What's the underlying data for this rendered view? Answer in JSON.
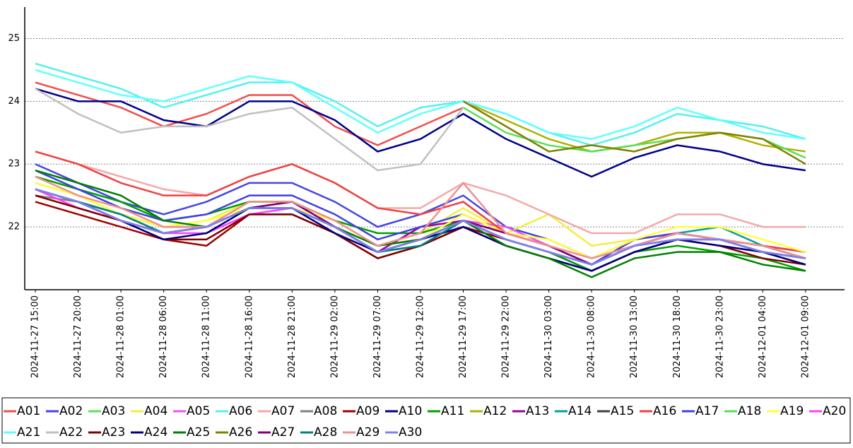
{
  "chart_data": {
    "type": "line",
    "categories": [
      "2024-11-27  15:00",
      "2024-11-27  20:00",
      "2024-11-28  01:00",
      "2024-11-28  06:00",
      "2024-11-28  11:00",
      "2024-11-28  16:00",
      "2024-11-28  21:00",
      "2024-11-29  02:00",
      "2024-11-29  07:00",
      "2024-11-29  12:00",
      "2024-11-29  17:00",
      "2024-11-29  22:00",
      "2024-11-30  03:00",
      "2024-11-30  08:00",
      "2024-11-30  13:00",
      "2024-11-30  18:00",
      "2024-11-30  23:00",
      "2024-12-01  04:00",
      "2024-12-01  09:00"
    ],
    "ylim": [
      21,
      25.5
    ],
    "yticks": [
      22,
      23,
      24,
      25
    ],
    "grid": true,
    "series": [
      {
        "name": "A01",
        "color": "#f04e4e",
        "values": [
          24.3,
          24.1,
          23.9,
          23.6,
          23.8,
          24.1,
          24.1,
          23.6,
          23.3,
          23.6,
          23.9,
          null,
          null,
          null,
          null,
          null,
          null,
          null,
          null
        ]
      },
      {
        "name": "A02",
        "color": "#4545e5",
        "values": [
          23.0,
          22.7,
          22.4,
          22.2,
          22.4,
          22.7,
          22.7,
          22.4,
          22.0,
          22.2,
          22.5,
          22.0,
          21.8,
          21.5,
          21.7,
          21.8,
          21.8,
          21.7,
          21.6
        ]
      },
      {
        "name": "A03",
        "color": "#5ee05e",
        "values": [
          22.7,
          22.5,
          22.2,
          22.0,
          22.0,
          22.4,
          22.4,
          22.1,
          21.7,
          21.8,
          22.1,
          21.8,
          21.6,
          21.4,
          21.7,
          21.9,
          21.8,
          21.7,
          21.5
        ]
      },
      {
        "name": "A04",
        "color": "#f0f040",
        "values": [
          22.8,
          22.5,
          22.3,
          22.0,
          22.1,
          22.4,
          22.4,
          22.1,
          21.7,
          21.9,
          22.3,
          21.9,
          22.2,
          21.7,
          21.8,
          21.9,
          21.8,
          21.7,
          21.5
        ]
      },
      {
        "name": "A05",
        "color": "#ee55ee",
        "values": [
          22.6,
          22.4,
          22.1,
          21.9,
          22.0,
          22.3,
          22.4,
          22.0,
          21.6,
          21.8,
          22.1,
          22.0,
          21.7,
          21.4,
          21.7,
          21.9,
          21.8,
          21.6,
          21.5
        ]
      },
      {
        "name": "A06",
        "color": "#55f0f0",
        "values": [
          24.6,
          24.4,
          24.2,
          23.9,
          24.1,
          24.3,
          24.3,
          24.0,
          23.6,
          23.9,
          24.0,
          23.8,
          23.5,
          23.3,
          23.5,
          23.8,
          23.7,
          23.6,
          23.4
        ]
      },
      {
        "name": "A07",
        "color": "#f5a8a8",
        "values": [
          23.2,
          23.0,
          22.8,
          22.6,
          22.5,
          22.8,
          23.0,
          22.7,
          22.3,
          22.3,
          22.7,
          22.5,
          22.2,
          21.9,
          21.9,
          22.2,
          22.2,
          22.0,
          22.0
        ]
      },
      {
        "name": "A08",
        "color": "#808080",
        "values": [
          22.5,
          22.4,
          22.1,
          21.9,
          22.0,
          22.3,
          22.3,
          22.0,
          21.6,
          21.8,
          22.0,
          21.8,
          21.6,
          21.4,
          21.7,
          21.8,
          21.8,
          21.6,
          21.5
        ]
      },
      {
        "name": "A09",
        "color": "#a00000",
        "values": [
          22.4,
          22.2,
          22.0,
          21.8,
          21.7,
          22.2,
          22.2,
          21.9,
          21.5,
          21.7,
          22.0,
          21.8,
          21.6,
          21.3,
          21.6,
          21.8,
          21.7,
          21.6,
          21.4
        ]
      },
      {
        "name": "A10",
        "color": "#00008b",
        "values": [
          24.2,
          24.0,
          24.0,
          23.7,
          23.6,
          24.0,
          24.0,
          23.7,
          23.2,
          23.4,
          23.8,
          23.4,
          23.1,
          22.8,
          23.1,
          23.3,
          23.2,
          23.0,
          22.9
        ]
      },
      {
        "name": "A11",
        "color": "#00a000",
        "values": [
          22.8,
          22.6,
          22.4,
          22.1,
          22.2,
          22.4,
          22.4,
          22.1,
          21.9,
          21.9,
          22.1,
          21.8,
          21.6,
          21.3,
          21.6,
          21.7,
          21.6,
          21.5,
          21.3
        ]
      },
      {
        "name": "A12",
        "color": "#b0b000",
        "values": [
          null,
          null,
          null,
          null,
          null,
          null,
          null,
          null,
          null,
          null,
          24.0,
          23.7,
          23.4,
          23.2,
          23.3,
          23.5,
          23.5,
          23.3,
          23.2
        ]
      },
      {
        "name": "A13",
        "color": "#a000a0",
        "values": [
          22.6,
          22.4,
          22.1,
          21.9,
          22.0,
          22.3,
          22.4,
          22.0,
          21.6,
          22.0,
          22.1,
          21.9,
          21.7,
          21.4,
          21.8,
          21.9,
          21.8,
          21.7,
          21.5
        ]
      },
      {
        "name": "A14",
        "color": "#00a0a0",
        "values": [
          22.6,
          22.4,
          22.2,
          21.9,
          22.0,
          22.3,
          22.3,
          22.0,
          21.6,
          21.7,
          22.1,
          21.8,
          21.6,
          21.4,
          21.7,
          21.9,
          22.0,
          21.7,
          21.5
        ]
      },
      {
        "name": "A15",
        "color": "#404040",
        "values": [
          22.6,
          22.4,
          22.2,
          22.0,
          22.0,
          22.3,
          22.4,
          22.0,
          21.6,
          21.8,
          22.1,
          21.8,
          21.6,
          21.4,
          21.7,
          21.8,
          21.8,
          21.6,
          21.5
        ]
      },
      {
        "name": "A16",
        "color": "#f04040",
        "values": [
          23.2,
          23.0,
          22.7,
          22.5,
          22.5,
          22.8,
          23.0,
          22.7,
          22.3,
          22.2,
          22.4,
          21.9,
          21.7,
          21.4,
          21.8,
          21.9,
          21.8,
          21.7,
          21.6
        ]
      },
      {
        "name": "A17",
        "color": "#4040e0",
        "values": [
          22.9,
          22.6,
          22.3,
          22.1,
          22.2,
          22.5,
          22.5,
          22.2,
          21.8,
          22.0,
          22.2,
          21.9,
          21.7,
          21.4,
          21.8,
          21.9,
          21.8,
          21.6,
          21.5
        ]
      },
      {
        "name": "A18",
        "color": "#55e055",
        "values": [
          null,
          null,
          null,
          null,
          null,
          null,
          null,
          null,
          null,
          null,
          23.9,
          23.5,
          23.3,
          23.2,
          23.3,
          23.4,
          23.5,
          23.4,
          23.1
        ]
      },
      {
        "name": "A19",
        "color": "#ffff40",
        "values": [
          22.7,
          22.5,
          22.2,
          22.0,
          22.1,
          22.3,
          22.3,
          22.1,
          21.7,
          21.8,
          22.2,
          21.9,
          21.8,
          21.5,
          21.8,
          22.0,
          22.0,
          21.8,
          21.6
        ]
      },
      {
        "name": "A20",
        "color": "#ff40ff",
        "values": [
          22.6,
          22.3,
          22.1,
          21.9,
          21.9,
          22.2,
          22.3,
          22.0,
          21.6,
          21.8,
          22.1,
          21.8,
          21.6,
          21.4,
          21.7,
          21.9,
          21.8,
          21.6,
          21.5
        ]
      },
      {
        "name": "A21",
        "color": "#60ffff",
        "values": [
          24.5,
          24.3,
          24.1,
          24.0,
          24.2,
          24.4,
          24.3,
          23.9,
          23.5,
          23.8,
          24.0,
          23.8,
          23.5,
          23.4,
          23.6,
          23.9,
          23.7,
          23.5,
          23.4
        ]
      },
      {
        "name": "A22",
        "color": "#c0c0c0",
        "values": [
          24.2,
          23.8,
          23.5,
          23.6,
          23.6,
          23.8,
          23.9,
          23.4,
          22.9,
          23.0,
          23.9,
          null,
          null,
          null,
          null,
          null,
          null,
          null,
          null
        ]
      },
      {
        "name": "A23",
        "color": "#800000",
        "values": [
          22.5,
          22.3,
          22.1,
          21.8,
          21.8,
          22.2,
          22.2,
          21.9,
          21.5,
          21.7,
          22.0,
          21.7,
          21.5,
          21.3,
          21.6,
          21.8,
          21.7,
          21.5,
          21.4
        ]
      },
      {
        "name": "A24",
        "color": "#000080",
        "values": [
          22.6,
          22.4,
          22.1,
          21.8,
          21.9,
          22.3,
          22.3,
          21.9,
          21.6,
          21.8,
          22.0,
          21.7,
          21.5,
          21.3,
          21.6,
          21.8,
          21.7,
          21.6,
          21.4
        ]
      },
      {
        "name": "A25",
        "color": "#008000",
        "values": [
          22.9,
          22.7,
          22.5,
          22.1,
          22.0,
          22.3,
          22.3,
          22.0,
          21.7,
          21.8,
          22.1,
          21.7,
          21.5,
          21.2,
          21.5,
          21.6,
          21.6,
          21.4,
          21.3
        ]
      },
      {
        "name": "A26",
        "color": "#808000",
        "values": [
          null,
          null,
          null,
          null,
          null,
          null,
          null,
          null,
          null,
          null,
          24.0,
          23.6,
          23.2,
          23.3,
          23.2,
          23.4,
          23.5,
          23.4,
          23.0
        ]
      },
      {
        "name": "A27",
        "color": "#800080",
        "values": [
          22.6,
          22.4,
          22.1,
          21.9,
          22.0,
          22.3,
          22.4,
          22.0,
          21.6,
          21.8,
          22.1,
          21.9,
          21.7,
          21.4,
          21.7,
          21.9,
          21.8,
          21.6,
          21.5
        ]
      },
      {
        "name": "A28",
        "color": "#008080",
        "values": [
          22.6,
          22.4,
          22.2,
          21.9,
          22.0,
          22.3,
          22.3,
          22.0,
          21.6,
          21.7,
          22.1,
          21.8,
          21.6,
          21.4,
          21.7,
          21.9,
          21.8,
          21.6,
          21.5
        ]
      },
      {
        "name": "A29",
        "color": "#f09090",
        "values": [
          22.8,
          22.5,
          22.3,
          22.0,
          22.0,
          22.4,
          22.4,
          22.1,
          21.7,
          21.9,
          22.7,
          21.9,
          21.7,
          21.5,
          21.7,
          21.9,
          21.8,
          21.7,
          21.5
        ]
      },
      {
        "name": "A30",
        "color": "#8080f0",
        "values": [
          22.6,
          22.4,
          22.1,
          21.9,
          22.0,
          22.3,
          22.3,
          22.0,
          21.6,
          21.8,
          22.1,
          21.8,
          21.6,
          21.4,
          21.7,
          21.8,
          21.8,
          21.6,
          21.5
        ]
      }
    ]
  }
}
